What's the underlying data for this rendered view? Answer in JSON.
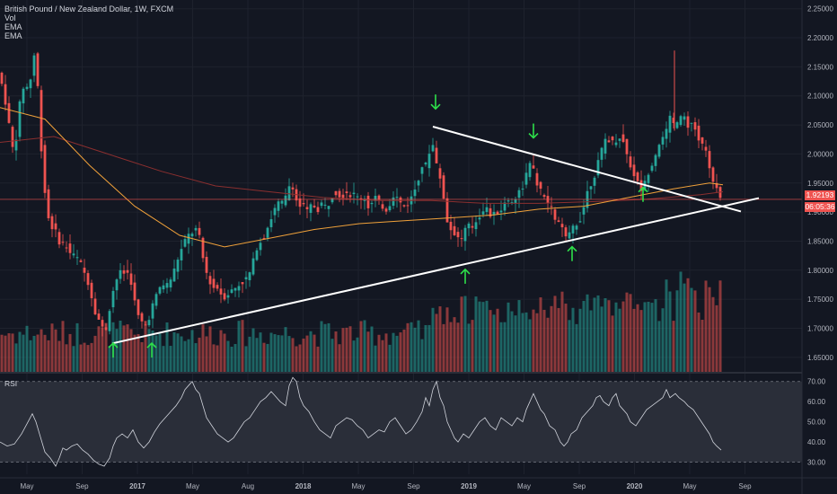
{
  "legend": {
    "symbol": "British Pound / New Zealand Dollar, 1W, FXCM",
    "vol": "Vol",
    "ema1": "EMA",
    "ema2": "EMA",
    "rsi": "RSI"
  },
  "badges": {
    "last_price": "1.92193",
    "countdown": "06:05:36"
  },
  "colors": {
    "background": "#131722",
    "up": "#26a69a",
    "down": "#ef5350",
    "ema_fast": "#f0a13a",
    "ema_slow": "#8b2f2f",
    "trendline": "#ffffff",
    "arrow": "#2ee04a",
    "rsi_band": "#2a2e39",
    "price_badge": "#ef5350"
  },
  "chart_data": {
    "type": "candlestick",
    "price_axis": {
      "ticks": [
        "2.25000",
        "2.20000",
        "2.15000",
        "2.10000",
        "2.05000",
        "2.00000",
        "1.95000",
        "1.90000",
        "1.85000",
        "1.80000",
        "1.75000",
        "1.70000",
        "1.65000"
      ],
      "ylim": [
        1.625,
        2.265
      ]
    },
    "time_axis": {
      "ticks": [
        "May",
        "Sep",
        "2017",
        "May",
        "Aug",
        "2018",
        "May",
        "Sep",
        "2019",
        "May",
        "Sep",
        "2020",
        "May",
        "Sep"
      ]
    },
    "rsi_axis": {
      "ticks": [
        "70.00",
        "60.00",
        "50.00",
        "40.00",
        "30.00"
      ],
      "ylim": [
        24,
        73
      ],
      "bands": [
        70,
        30
      ]
    },
    "price_path": [
      [
        0,
        2.14
      ],
      [
        6,
        2.11
      ],
      [
        12,
        2.05
      ],
      [
        18,
        1.99
      ],
      [
        22,
        2.07
      ],
      [
        26,
        2.1
      ],
      [
        30,
        2.13
      ],
      [
        34,
        2.1
      ],
      [
        38,
        2.16
      ],
      [
        42,
        2.18
      ],
      [
        46,
        2.05
      ],
      [
        50,
        1.97
      ],
      [
        54,
        1.9
      ],
      [
        58,
        1.88
      ],
      [
        62,
        1.87
      ],
      [
        66,
        1.86
      ],
      [
        70,
        1.84
      ],
      [
        74,
        1.85
      ],
      [
        78,
        1.83
      ],
      [
        82,
        1.83
      ],
      [
        86,
        1.82
      ],
      [
        90,
        1.82
      ],
      [
        94,
        1.8
      ],
      [
        98,
        1.79
      ],
      [
        102,
        1.77
      ],
      [
        106,
        1.74
      ],
      [
        110,
        1.72
      ],
      [
        114,
        1.71
      ],
      [
        118,
        1.69
      ],
      [
        122,
        1.71
      ],
      [
        126,
        1.76
      ],
      [
        130,
        1.77
      ],
      [
        134,
        1.8
      ],
      [
        138,
        1.79
      ],
      [
        142,
        1.8
      ],
      [
        146,
        1.79
      ],
      [
        150,
        1.77
      ],
      [
        154,
        1.72
      ],
      [
        158,
        1.72
      ],
      [
        162,
        1.7
      ],
      [
        166,
        1.71
      ],
      [
        170,
        1.73
      ],
      [
        174,
        1.75
      ],
      [
        178,
        1.76
      ],
      [
        182,
        1.78
      ],
      [
        186,
        1.77
      ],
      [
        190,
        1.78
      ],
      [
        194,
        1.79
      ],
      [
        198,
        1.81
      ],
      [
        202,
        1.83
      ],
      [
        206,
        1.84
      ],
      [
        210,
        1.86
      ],
      [
        214,
        1.86
      ],
      [
        218,
        1.87
      ],
      [
        222,
        1.87
      ],
      [
        226,
        1.84
      ],
      [
        230,
        1.8
      ],
      [
        234,
        1.79
      ],
      [
        238,
        1.77
      ],
      [
        242,
        1.77
      ],
      [
        246,
        1.77
      ],
      [
        250,
        1.75
      ],
      [
        254,
        1.76
      ],
      [
        258,
        1.76
      ],
      [
        262,
        1.77
      ],
      [
        266,
        1.77
      ],
      [
        270,
        1.78
      ],
      [
        274,
        1.78
      ],
      [
        278,
        1.79
      ],
      [
        282,
        1.8
      ],
      [
        286,
        1.83
      ],
      [
        290,
        1.85
      ],
      [
        294,
        1.85
      ],
      [
        298,
        1.87
      ],
      [
        302,
        1.88
      ],
      [
        306,
        1.9
      ],
      [
        310,
        1.91
      ],
      [
        314,
        1.92
      ],
      [
        318,
        1.91
      ],
      [
        322,
        1.94
      ],
      [
        326,
        1.95
      ],
      [
        330,
        1.94
      ],
      [
        334,
        1.9
      ],
      [
        338,
        1.92
      ],
      [
        342,
        1.9
      ],
      [
        346,
        1.9
      ],
      [
        350,
        1.92
      ],
      [
        354,
        1.9
      ],
      [
        358,
        1.91
      ],
      [
        362,
        1.92
      ],
      [
        366,
        1.9
      ],
      [
        370,
        1.93
      ],
      [
        374,
        1.93
      ],
      [
        378,
        1.94
      ],
      [
        382,
        1.92
      ],
      [
        386,
        1.94
      ],
      [
        390,
        1.93
      ],
      [
        394,
        1.93
      ],
      [
        398,
        1.93
      ],
      [
        402,
        1.92
      ],
      [
        406,
        1.93
      ],
      [
        410,
        1.92
      ],
      [
        414,
        1.9
      ],
      [
        418,
        1.93
      ],
      [
        422,
        1.92
      ],
      [
        426,
        1.91
      ],
      [
        430,
        1.91
      ],
      [
        434,
        1.9
      ],
      [
        438,
        1.93
      ],
      [
        442,
        1.93
      ],
      [
        446,
        1.92
      ],
      [
        450,
        1.91
      ],
      [
        454,
        1.91
      ],
      [
        458,
        1.92
      ],
      [
        462,
        1.93
      ],
      [
        466,
        1.95
      ],
      [
        470,
        1.97
      ],
      [
        474,
        1.99
      ],
      [
        478,
        1.97
      ],
      [
        482,
        2.04
      ],
      [
        486,
        1.99
      ],
      [
        490,
        1.97
      ],
      [
        494,
        1.95
      ],
      [
        498,
        1.9
      ],
      [
        502,
        1.87
      ],
      [
        506,
        1.87
      ],
      [
        510,
        1.86
      ],
      [
        514,
        1.85
      ],
      [
        518,
        1.86
      ],
      [
        522,
        1.88
      ],
      [
        526,
        1.87
      ],
      [
        530,
        1.88
      ],
      [
        534,
        1.89
      ],
      [
        538,
        1.9
      ],
      [
        542,
        1.91
      ],
      [
        546,
        1.9
      ],
      [
        550,
        1.89
      ],
      [
        554,
        1.9
      ],
      [
        558,
        1.9
      ],
      [
        562,
        1.91
      ],
      [
        566,
        1.92
      ],
      [
        570,
        1.92
      ],
      [
        574,
        1.92
      ],
      [
        578,
        1.93
      ],
      [
        582,
        1.94
      ],
      [
        586,
        1.95
      ],
      [
        590,
        1.98
      ],
      [
        594,
        1.98
      ],
      [
        598,
        1.96
      ],
      [
        602,
        1.94
      ],
      [
        606,
        1.93
      ],
      [
        610,
        1.92
      ],
      [
        614,
        1.91
      ],
      [
        618,
        1.9
      ],
      [
        622,
        1.88
      ],
      [
        626,
        1.88
      ],
      [
        630,
        1.86
      ],
      [
        634,
        1.85
      ],
      [
        638,
        1.87
      ],
      [
        642,
        1.88
      ],
      [
        646,
        1.88
      ],
      [
        650,
        1.9
      ],
      [
        654,
        1.92
      ],
      [
        658,
        1.95
      ],
      [
        662,
        1.95
      ],
      [
        666,
        1.98
      ],
      [
        670,
        1.99
      ],
      [
        674,
        2.02
      ],
      [
        678,
        2.03
      ],
      [
        682,
        2.02
      ],
      [
        686,
        2.02
      ],
      [
        690,
        2.03
      ],
      [
        694,
        2.03
      ],
      [
        698,
        2.01
      ],
      [
        702,
        1.99
      ],
      [
        706,
        1.97
      ],
      [
        710,
        1.96
      ],
      [
        714,
        1.94
      ],
      [
        718,
        1.94
      ],
      [
        722,
        1.96
      ],
      [
        726,
        1.98
      ],
      [
        730,
        1.99
      ],
      [
        734,
        2.01
      ],
      [
        738,
        2.03
      ],
      [
        742,
        2.02
      ],
      [
        746,
        2.06
      ],
      [
        750,
        2.06
      ],
      [
        754,
        2.04
      ],
      [
        758,
        2.06
      ],
      [
        762,
        2.07
      ],
      [
        766,
        2.06
      ],
      [
        770,
        2.04
      ],
      [
        774,
        2.06
      ],
      [
        778,
        2.03
      ],
      [
        782,
        2.02
      ],
      [
        786,
        2.01
      ],
      [
        790,
        1.99
      ],
      [
        794,
        1.96
      ],
      [
        798,
        1.95
      ],
      [
        802,
        1.93
      ],
      [
        805,
        1.92
      ]
    ],
    "ema_fast_path": [
      [
        0,
        2.08
      ],
      [
        50,
        2.06
      ],
      [
        100,
        1.98
      ],
      [
        150,
        1.91
      ],
      [
        200,
        1.86
      ],
      [
        250,
        1.84
      ],
      [
        300,
        1.855
      ],
      [
        350,
        1.87
      ],
      [
        400,
        1.88
      ],
      [
        450,
        1.885
      ],
      [
        500,
        1.89
      ],
      [
        550,
        1.895
      ],
      [
        600,
        1.905
      ],
      [
        650,
        1.91
      ],
      [
        700,
        1.925
      ],
      [
        750,
        1.94
      ],
      [
        790,
        1.95
      ],
      [
        805,
        1.947
      ]
    ],
    "ema_slow_path": [
      [
        0,
        2.02
      ],
      [
        60,
        2.03
      ],
      [
        120,
        2.0
      ],
      [
        180,
        1.97
      ],
      [
        240,
        1.945
      ],
      [
        300,
        1.935
      ],
      [
        360,
        1.925
      ],
      [
        420,
        1.92
      ],
      [
        480,
        1.92
      ],
      [
        540,
        1.915
      ],
      [
        600,
        1.915
      ],
      [
        660,
        1.918
      ],
      [
        720,
        1.922
      ],
      [
        780,
        1.93
      ],
      [
        805,
        1.935
      ]
    ],
    "rsi_path": [
      [
        0,
        40
      ],
      [
        8,
        38
      ],
      [
        16,
        39
      ],
      [
        24,
        44
      ],
      [
        30,
        49
      ],
      [
        36,
        54
      ],
      [
        40,
        50
      ],
      [
        44,
        44
      ],
      [
        50,
        35
      ],
      [
        56,
        32
      ],
      [
        62,
        28
      ],
      [
        66,
        32
      ],
      [
        70,
        37
      ],
      [
        74,
        36
      ],
      [
        80,
        38
      ],
      [
        86,
        39
      ],
      [
        92,
        36
      ],
      [
        98,
        34
      ],
      [
        104,
        31
      ],
      [
        110,
        29
      ],
      [
        116,
        28
      ],
      [
        122,
        32
      ],
      [
        126,
        38
      ],
      [
        130,
        42
      ],
      [
        136,
        44
      ],
      [
        142,
        42
      ],
      [
        148,
        46
      ],
      [
        154,
        40
      ],
      [
        160,
        37
      ],
      [
        166,
        40
      ],
      [
        172,
        45
      ],
      [
        178,
        49
      ],
      [
        184,
        52
      ],
      [
        190,
        55
      ],
      [
        196,
        58
      ],
      [
        202,
        62
      ],
      [
        206,
        66
      ],
      [
        210,
        68
      ],
      [
        214,
        70
      ],
      [
        218,
        66
      ],
      [
        222,
        64
      ],
      [
        226,
        58
      ],
      [
        230,
        52
      ],
      [
        236,
        48
      ],
      [
        242,
        44
      ],
      [
        248,
        42
      ],
      [
        254,
        40
      ],
      [
        260,
        42
      ],
      [
        266,
        46
      ],
      [
        272,
        50
      ],
      [
        278,
        52
      ],
      [
        284,
        56
      ],
      [
        290,
        60
      ],
      [
        296,
        62
      ],
      [
        302,
        65
      ],
      [
        306,
        63
      ],
      [
        312,
        60
      ],
      [
        318,
        58
      ],
      [
        322,
        68
      ],
      [
        326,
        72
      ],
      [
        330,
        70
      ],
      [
        334,
        62
      ],
      [
        338,
        58
      ],
      [
        344,
        55
      ],
      [
        350,
        50
      ],
      [
        356,
        46
      ],
      [
        362,
        44
      ],
      [
        368,
        42
      ],
      [
        374,
        48
      ],
      [
        380,
        50
      ],
      [
        386,
        52
      ],
      [
        392,
        51
      ],
      [
        398,
        48
      ],
      [
        404,
        46
      ],
      [
        410,
        42
      ],
      [
        416,
        44
      ],
      [
        422,
        46
      ],
      [
        428,
        45
      ],
      [
        434,
        50
      ],
      [
        440,
        52
      ],
      [
        446,
        48
      ],
      [
        452,
        44
      ],
      [
        458,
        46
      ],
      [
        464,
        50
      ],
      [
        470,
        55
      ],
      [
        474,
        62
      ],
      [
        478,
        58
      ],
      [
        482,
        66
      ],
      [
        486,
        70
      ],
      [
        490,
        62
      ],
      [
        494,
        58
      ],
      [
        498,
        50
      ],
      [
        502,
        46
      ],
      [
        506,
        42
      ],
      [
        510,
        40
      ],
      [
        516,
        44
      ],
      [
        522,
        42
      ],
      [
        528,
        46
      ],
      [
        534,
        50
      ],
      [
        540,
        52
      ],
      [
        546,
        48
      ],
      [
        552,
        46
      ],
      [
        558,
        52
      ],
      [
        564,
        50
      ],
      [
        570,
        48
      ],
      [
        576,
        52
      ],
      [
        582,
        50
      ],
      [
        586,
        56
      ],
      [
        590,
        60
      ],
      [
        594,
        64
      ],
      [
        598,
        60
      ],
      [
        602,
        56
      ],
      [
        606,
        54
      ],
      [
        612,
        48
      ],
      [
        618,
        46
      ],
      [
        624,
        40
      ],
      [
        628,
        38
      ],
      [
        632,
        40
      ],
      [
        636,
        44
      ],
      [
        642,
        46
      ],
      [
        648,
        52
      ],
      [
        654,
        55
      ],
      [
        660,
        58
      ],
      [
        664,
        62
      ],
      [
        668,
        63
      ],
      [
        672,
        60
      ],
      [
        678,
        58
      ],
      [
        682,
        62
      ],
      [
        686,
        64
      ],
      [
        690,
        58
      ],
      [
        694,
        56
      ],
      [
        698,
        54
      ],
      [
        702,
        50
      ],
      [
        708,
        48
      ],
      [
        714,
        52
      ],
      [
        720,
        56
      ],
      [
        726,
        58
      ],
      [
        732,
        60
      ],
      [
        738,
        62
      ],
      [
        742,
        66
      ],
      [
        746,
        62
      ],
      [
        752,
        64
      ],
      [
        756,
        62
      ],
      [
        762,
        60
      ],
      [
        766,
        58
      ],
      [
        772,
        56
      ],
      [
        778,
        52
      ],
      [
        784,
        48
      ],
      [
        790,
        44
      ],
      [
        794,
        40
      ],
      [
        798,
        38
      ],
      [
        803,
        36
      ]
    ],
    "trendlines": [
      {
        "from": [
          125,
          1.674
        ],
        "to": [
          845,
          1.924
        ]
      },
      {
        "from": [
          482,
          2.047
        ],
        "to": [
          825,
          1.901
        ]
      }
    ],
    "arrows": [
      {
        "dir": "up",
        "x": 126,
        "price": 1.662
      },
      {
        "dir": "up",
        "x": 169,
        "price": 1.662
      },
      {
        "dir": "up",
        "x": 518,
        "price": 1.789
      },
      {
        "dir": "up",
        "x": 637,
        "price": 1.828
      },
      {
        "dir": "up",
        "x": 716,
        "price": 1.93
      },
      {
        "dir": "down",
        "x": 485,
        "price": 2.09
      },
      {
        "dir": "down",
        "x": 594,
        "price": 2.04
      }
    ],
    "spike": {
      "x": 751,
      "high": 2.178
    }
  }
}
